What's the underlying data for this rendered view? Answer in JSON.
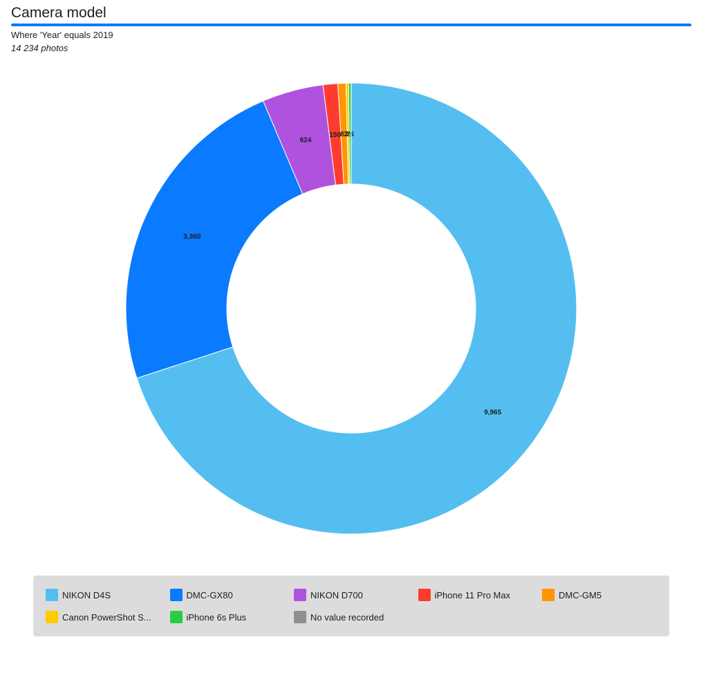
{
  "header": {
    "title": "Camera model",
    "subtitle": "Where  'Year' equals 2019",
    "count": "14 234 photos"
  },
  "chart_data": {
    "type": "pie",
    "donut": true,
    "start_angle_deg": 0,
    "direction": "clockwise",
    "categories": [
      "NIKON D4S",
      "DMC-GX80",
      "NIKON D700",
      "iPhone 11 Pro Max",
      "DMC-GM5",
      "Canon PowerShot S...",
      "iPhone 6s Plus",
      "No value recorded"
    ],
    "values": [
      9965,
      3360,
      624,
      150,
      82,
      26,
      26,
      1
    ],
    "data_labels": [
      "9,965",
      "3,360",
      "624",
      "150",
      "82",
      "26",
      "26",
      ""
    ],
    "colors": [
      "#55bef0",
      "#0a7aff",
      "#af52de",
      "#ff3b30",
      "#ff9500",
      "#ffcc00",
      "#28cd41",
      "#8e8e93"
    ],
    "legend_position": "bottom"
  }
}
